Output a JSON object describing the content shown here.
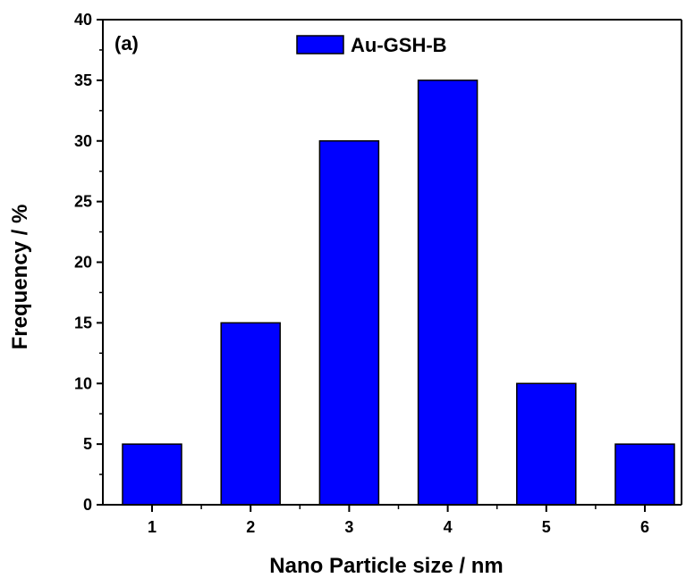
{
  "chart_data": {
    "type": "bar",
    "panel_label": "(a)",
    "xlabel": "Nano Particle size / nm",
    "ylabel": "Frequency / %",
    "categories": [
      "1",
      "2",
      "3",
      "4",
      "5",
      "6"
    ],
    "series": [
      {
        "name": "Au-GSH-B",
        "values": [
          5,
          15,
          30,
          35,
          10,
          5
        ]
      }
    ],
    "ylim": [
      0,
      40
    ],
    "yticks": [
      "0",
      "5",
      "10",
      "15",
      "20",
      "25",
      "30",
      "35",
      "40"
    ],
    "bar_color": "#0000ff",
    "grid": false,
    "legend_position": "top-center"
  }
}
